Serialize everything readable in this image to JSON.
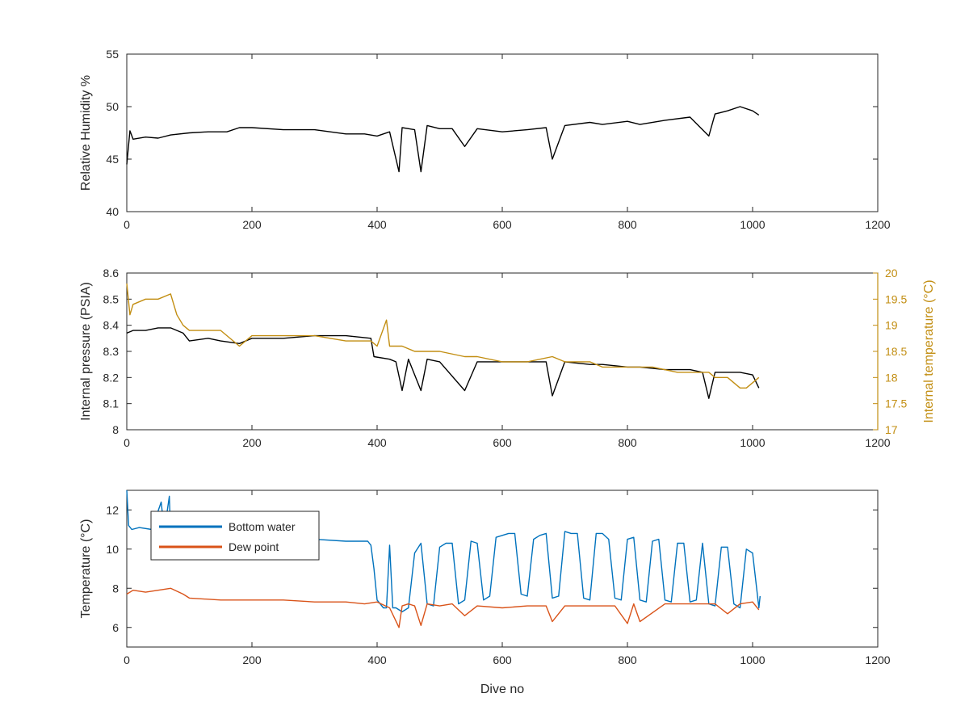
{
  "chart_data": [
    {
      "type": "line",
      "title": "",
      "xlabel": "",
      "ylabel": "Relative Humidity %",
      "xlim": [
        0,
        1200
      ],
      "ylim": [
        40,
        55
      ],
      "xticks": [
        0,
        200,
        400,
        600,
        800,
        1000,
        1200
      ],
      "yticks": [
        40,
        45,
        50,
        55
      ],
      "grid": false,
      "series": [
        {
          "color": "#000000",
          "x": [
            0,
            5,
            10,
            30,
            50,
            70,
            100,
            130,
            160,
            180,
            200,
            250,
            300,
            350,
            380,
            400,
            420,
            435,
            440,
            460,
            470,
            480,
            500,
            520,
            540,
            560,
            600,
            640,
            670,
            680,
            700,
            740,
            760,
            800,
            820,
            860,
            900,
            930,
            940,
            960,
            980,
            1000,
            1010
          ],
          "y": [
            44.5,
            47.7,
            46.9,
            47.1,
            47.0,
            47.3,
            47.5,
            47.6,
            47.6,
            48.0,
            48.0,
            47.8,
            47.8,
            47.4,
            47.4,
            47.2,
            47.6,
            43.8,
            48.0,
            47.8,
            43.8,
            48.2,
            47.9,
            47.9,
            46.2,
            47.9,
            47.6,
            47.8,
            48.0,
            45.0,
            48.2,
            48.5,
            48.3,
            48.6,
            48.3,
            48.7,
            49.0,
            47.2,
            49.3,
            49.6,
            50.0,
            49.6,
            49.2
          ]
        }
      ],
      "x_tick_labels": [
        "0",
        "200",
        "400",
        "600",
        "800",
        "1000",
        "1200"
      ],
      "y_tick_labels": [
        "40",
        "45",
        "50",
        "55"
      ]
    },
    {
      "type": "line",
      "title": "",
      "xlabel": "",
      "ylabel": "Internal pressure (PSIA)",
      "y2label": "Internal temperature (°C)",
      "xlim": [
        0,
        1200
      ],
      "ylim": [
        8,
        8.6
      ],
      "y2lim": [
        17,
        20
      ],
      "xticks": [
        0,
        200,
        400,
        600,
        800,
        1000,
        1200
      ],
      "yticks": [
        8,
        8.1,
        8.2,
        8.3,
        8.4,
        8.5,
        8.6
      ],
      "y2ticks": [
        17,
        17.5,
        18,
        18.5,
        19,
        19.5,
        20
      ],
      "grid": false,
      "series": [
        {
          "axis": "left",
          "color": "#000000",
          "x": [
            0,
            10,
            30,
            50,
            70,
            90,
            100,
            130,
            150,
            180,
            200,
            250,
            300,
            350,
            390,
            395,
            420,
            430,
            440,
            450,
            470,
            480,
            500,
            540,
            560,
            600,
            640,
            670,
            680,
            700,
            740,
            760,
            800,
            820,
            860,
            900,
            920,
            930,
            940,
            960,
            980,
            1000,
            1010
          ],
          "y": [
            8.37,
            8.38,
            8.38,
            8.39,
            8.39,
            8.37,
            8.34,
            8.35,
            8.34,
            8.33,
            8.35,
            8.35,
            8.36,
            8.36,
            8.35,
            8.28,
            8.27,
            8.26,
            8.15,
            8.27,
            8.15,
            8.27,
            8.26,
            8.15,
            8.26,
            8.26,
            8.26,
            8.26,
            8.13,
            8.26,
            8.25,
            8.25,
            8.24,
            8.24,
            8.23,
            8.23,
            8.22,
            8.12,
            8.22,
            8.22,
            8.22,
            8.21,
            8.16
          ]
        },
        {
          "axis": "right",
          "color": "#c28e12",
          "x": [
            0,
            5,
            10,
            30,
            50,
            70,
            80,
            90,
            100,
            130,
            150,
            180,
            200,
            250,
            300,
            350,
            390,
            400,
            415,
            420,
            440,
            460,
            500,
            540,
            560,
            600,
            640,
            680,
            700,
            740,
            760,
            800,
            840,
            880,
            900,
            930,
            940,
            960,
            980,
            990,
            1010
          ],
          "y": [
            19.8,
            19.2,
            19.4,
            19.5,
            19.5,
            19.6,
            19.2,
            19.0,
            18.9,
            18.9,
            18.9,
            18.6,
            18.8,
            18.8,
            18.8,
            18.7,
            18.7,
            18.6,
            19.1,
            18.6,
            18.6,
            18.5,
            18.5,
            18.4,
            18.4,
            18.3,
            18.3,
            18.4,
            18.3,
            18.3,
            18.2,
            18.2,
            18.2,
            18.1,
            18.1,
            18.1,
            18.0,
            18.0,
            17.8,
            17.8,
            18.0
          ]
        }
      ],
      "x_tick_labels": [
        "0",
        "200",
        "400",
        "600",
        "800",
        "1000",
        "1200"
      ],
      "y_tick_labels": [
        "8",
        "8.1",
        "8.2",
        "8.3",
        "8.4",
        "8.5",
        "8.6"
      ],
      "y2_tick_labels": [
        "17",
        "17.5",
        "18",
        "18.5",
        "19",
        "19.5",
        "20"
      ]
    },
    {
      "type": "line",
      "title": "",
      "xlabel": "Dive no",
      "ylabel": "Temperature (°C)",
      "xlim": [
        0,
        1200
      ],
      "ylim": [
        5,
        13
      ],
      "xticks": [
        0,
        200,
        400,
        600,
        800,
        1000,
        1200
      ],
      "yticks": [
        6,
        8,
        10,
        12
      ],
      "grid": false,
      "legend_position": "top-left",
      "series": [
        {
          "name": "Bottom water",
          "color": "#0072bd",
          "x": [
            0,
            3,
            8,
            20,
            40,
            55,
            60,
            68,
            70,
            75,
            80,
            100,
            150,
            200,
            250,
            300,
            350,
            385,
            390,
            395,
            400,
            410,
            415,
            420,
            425,
            430,
            440,
            450,
            460,
            470,
            480,
            490,
            500,
            510,
            520,
            530,
            540,
            550,
            560,
            570,
            580,
            590,
            600,
            610,
            620,
            630,
            640,
            650,
            660,
            670,
            680,
            690,
            700,
            710,
            720,
            730,
            740,
            750,
            760,
            770,
            780,
            790,
            800,
            810,
            820,
            830,
            840,
            850,
            860,
            870,
            880,
            890,
            900,
            910,
            920,
            930,
            940,
            950,
            960,
            970,
            980,
            990,
            1000,
            1010,
            1012
          ],
          "y": [
            13.0,
            11.2,
            11.0,
            11.1,
            11.0,
            12.4,
            10.9,
            12.7,
            10.8,
            10.8,
            10.7,
            10.7,
            10.6,
            10.6,
            10.5,
            10.5,
            10.4,
            10.4,
            10.2,
            9.0,
            7.4,
            7.0,
            7.0,
            10.2,
            7.0,
            7.0,
            6.8,
            7.0,
            9.8,
            10.3,
            7.2,
            7.1,
            10.1,
            10.3,
            10.3,
            7.2,
            7.4,
            10.4,
            10.3,
            7.4,
            7.6,
            10.6,
            10.7,
            10.8,
            10.8,
            7.7,
            7.6,
            10.5,
            10.7,
            10.8,
            7.5,
            7.6,
            10.9,
            10.8,
            10.8,
            7.5,
            7.4,
            10.8,
            10.8,
            10.5,
            7.5,
            7.4,
            10.5,
            10.6,
            7.4,
            7.3,
            10.4,
            10.5,
            7.4,
            7.3,
            10.3,
            10.3,
            7.3,
            7.4,
            10.3,
            7.2,
            7.1,
            10.1,
            10.1,
            7.2,
            7.0,
            10.0,
            9.8,
            7.0,
            7.6
          ]
        },
        {
          "name": "Dew point",
          "color": "#d95319",
          "x": [
            0,
            10,
            30,
            50,
            70,
            90,
            100,
            150,
            200,
            250,
            300,
            350,
            380,
            400,
            420,
            435,
            440,
            450,
            460,
            470,
            480,
            500,
            520,
            540,
            560,
            600,
            640,
            670,
            680,
            700,
            740,
            780,
            800,
            810,
            820,
            860,
            900,
            940,
            960,
            980,
            1000,
            1010
          ],
          "y": [
            7.7,
            7.9,
            7.8,
            7.9,
            8.0,
            7.7,
            7.5,
            7.4,
            7.4,
            7.4,
            7.3,
            7.3,
            7.2,
            7.3,
            7.0,
            6.0,
            7.1,
            7.2,
            7.1,
            6.1,
            7.2,
            7.1,
            7.2,
            6.6,
            7.1,
            7.0,
            7.1,
            7.1,
            6.3,
            7.1,
            7.1,
            7.1,
            6.2,
            7.2,
            6.3,
            7.2,
            7.2,
            7.2,
            6.7,
            7.2,
            7.3,
            6.9
          ]
        }
      ],
      "x_tick_labels": [
        "0",
        "200",
        "400",
        "600",
        "800",
        "1000",
        "1200"
      ],
      "y_tick_labels": [
        "6",
        "8",
        "10",
        "12"
      ]
    }
  ]
}
